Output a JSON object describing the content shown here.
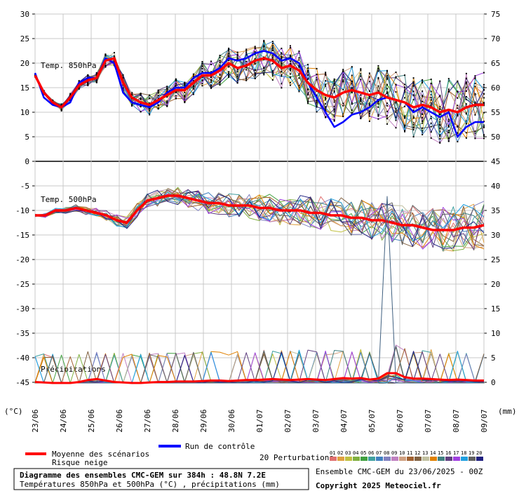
{
  "chart_data": {
    "type": "line",
    "title": "Diagramme des ensembles CMC-GEM sur 384h : 48.8N 7.2E",
    "subtitle": "Températures 850hPa et 500hPa (°C) , précipitations (mm)",
    "run_label": "Ensemble CMC-GEM du 23/06/2025 - 00Z",
    "copyright": "Copyright 2025 Meteociel.fr",
    "left_unit": "(°C)",
    "right_unit": "(mm)",
    "left_axis_ticks": [
      30,
      25,
      20,
      15,
      10,
      5,
      0,
      -5,
      -10,
      -15,
      -20,
      -25,
      -30,
      -35,
      -40,
      -45
    ],
    "right_axis_ticks": [
      75,
      70,
      65,
      60,
      55,
      50,
      45,
      40,
      35,
      30,
      25,
      20,
      15,
      10,
      5,
      0
    ],
    "x_tick_labels": [
      "23/06",
      "24/06",
      "25/06",
      "26/06",
      "27/06",
      "28/06",
      "29/06",
      "30/06",
      "01/07",
      "02/07",
      "03/07",
      "04/07",
      "05/07",
      "06/07",
      "07/07",
      "08/07",
      "09/07"
    ],
    "panel_labels": {
      "t850": "Temp. 850hPa",
      "t500": "Temp. 500hPa",
      "precip": "Précipitations"
    },
    "legend": {
      "mean": "Moyenne des scénarios",
      "snow": "Risque neige",
      "control": "Run de contrôle",
      "perturbations": "20 Perturbations"
    },
    "perturbation_numbers": [
      "01",
      "02",
      "03",
      "04",
      "05",
      "06",
      "07",
      "08",
      "09",
      "10",
      "11",
      "12",
      "13",
      "14",
      "15",
      "16",
      "17",
      "18",
      "19",
      "20"
    ],
    "perturbation_colors": [
      "#e07070",
      "#e0a040",
      "#c0c040",
      "#80b040",
      "#40a040",
      "#40a0a0",
      "#4080c0",
      "#8080c0",
      "#c080c0",
      "#d0a080",
      "#a06030",
      "#806040",
      "#c0c0a0",
      "#e08000",
      "#408080",
      "#604080",
      "#a040e0",
      "#20a0e0",
      "#606060",
      "#202080"
    ],
    "mean_color": "#ff0000",
    "control_color": "#0000ff",
    "x_days": 16,
    "step_hours": 6,
    "series": {
      "t850_mean": [
        17.5,
        14,
        12,
        11,
        13,
        15.5,
        16.5,
        17,
        20.5,
        21,
        16,
        13,
        12,
        11.5,
        12.5,
        13.5,
        14.5,
        14.5,
        16,
        17.5,
        17.5,
        18.5,
        20,
        19,
        19.5,
        20.5,
        21,
        20.5,
        19,
        19.5,
        18.5,
        16,
        14.5,
        13.5,
        13,
        14,
        14.5,
        14,
        13.5,
        14,
        13,
        12.5,
        12,
        11,
        11.5,
        11,
        10,
        10.5,
        10,
        11,
        11.5,
        11.5
      ],
      "t850_control": [
        18,
        13,
        11.5,
        11,
        12,
        16,
        17,
        17,
        21,
        20,
        14,
        12,
        11.5,
        11,
        12,
        14,
        15,
        15,
        17,
        18,
        18,
        19,
        21,
        20.5,
        21,
        22,
        22.5,
        22,
        20.5,
        21,
        20,
        16,
        13,
        10,
        7,
        8,
        9.5,
        10,
        11,
        12.5,
        13,
        12.5,
        12,
        10,
        11,
        10,
        9,
        10,
        5,
        7,
        8,
        8
      ],
      "t500_mean": [
        -11,
        -11,
        -10,
        -10,
        -9.5,
        -10,
        -10.5,
        -11,
        -12,
        -12.5,
        -10,
        -8,
        -7.5,
        -7,
        -7,
        -7.5,
        -8,
        -8.5,
        -8.5,
        -9,
        -9,
        -9,
        -9.5,
        -9.5,
        -10,
        -10,
        -10,
        -10.5,
        -10.5,
        -11,
        -11,
        -11.5,
        -11.5,
        -12,
        -12,
        -12.5,
        -13,
        -13,
        -13.5,
        -14,
        -14,
        -14,
        -13.5,
        -13.5,
        -13
      ],
      "precip_mean": [
        0.2,
        0.1,
        0,
        0,
        0,
        0.2,
        0.6,
        0.8,
        0.5,
        0.2,
        0.1,
        0,
        0,
        0.1,
        0.2,
        0.2,
        0.3,
        0.3,
        0.3,
        0.4,
        0.5,
        0.5,
        0.4,
        0.5,
        0.6,
        0.6,
        0.7,
        0.8,
        0.7,
        0.6,
        0.7,
        0.8,
        0.7,
        0.6,
        0.8,
        1.0,
        0.9,
        1.0,
        0.7,
        0.9,
        2.0,
        2.0,
        1.2,
        0.9,
        0.9,
        0.8,
        0.7,
        0.6,
        0.7,
        0.6,
        0.5,
        0.5
      ],
      "precip_control_spike": [
        0,
        0,
        0,
        0,
        0,
        0,
        0,
        0,
        0,
        0,
        0,
        0,
        0,
        0,
        0,
        0,
        0,
        0,
        0,
        0,
        0,
        0,
        0,
        0,
        0,
        0,
        0,
        0,
        0,
        0,
        0,
        0,
        0,
        0,
        0,
        0,
        0,
        0,
        0,
        0,
        38,
        0,
        0,
        0,
        0,
        0,
        0,
        0,
        0,
        0,
        0,
        0
      ]
    }
  }
}
